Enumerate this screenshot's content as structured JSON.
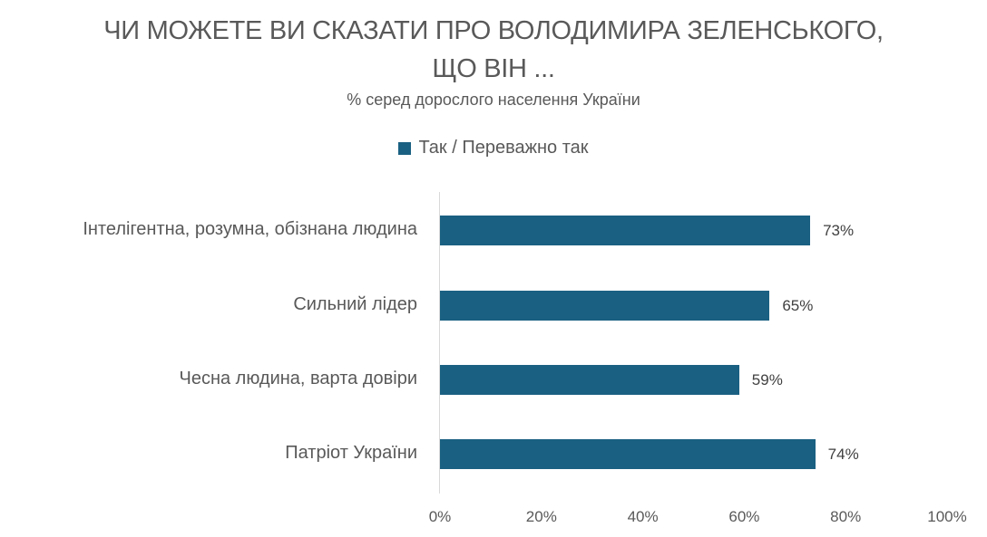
{
  "title": {
    "line1": "ЧИ МОЖЕТЕ ВИ СКАЗАТИ ПРО ВОЛОДИМИРА ЗЕЛЕНСЬКОГО,",
    "line2": "ЩО ВІН ...",
    "subtitle": "% серед дорослого населення України"
  },
  "legend": {
    "label": "Так / Переважно так",
    "color": "#1a6082"
  },
  "axis": {
    "ticks": [
      "0%",
      "20%",
      "40%",
      "60%",
      "80%",
      "100%"
    ]
  },
  "bars": [
    {
      "label": "Інтелігентна, розумна, обізнана людина",
      "value": 73,
      "value_label": "73%"
    },
    {
      "label": "Сильний лідер",
      "value": 65,
      "value_label": "65%"
    },
    {
      "label": "Чесна людина, варта довіри",
      "value": 59,
      "value_label": "59%"
    },
    {
      "label": "Патріот України",
      "value": 74,
      "value_label": "74%"
    }
  ],
  "chart_data": {
    "type": "bar",
    "orientation": "horizontal",
    "title": "ЧИ МОЖЕТЕ ВИ СКАЗАТИ ПРО ВОЛОДИМИРА ЗЕЛЕНСЬКОГО, ЩО ВІН ...",
    "subtitle": "% серед дорослого населення України",
    "categories": [
      "Інтелігентна, розумна, обізнана людина",
      "Сильний лідер",
      "Чесна людина, варта довіри",
      "Патріот України"
    ],
    "series": [
      {
        "name": "Так / Переважно так",
        "values": [
          73,
          65,
          59,
          74
        ],
        "color": "#1a6082"
      }
    ],
    "data_labels": [
      "73%",
      "65%",
      "59%",
      "74%"
    ],
    "xlabel": "",
    "ylabel": "",
    "xlim": [
      0,
      100
    ],
    "x_ticks": [
      "0%",
      "20%",
      "40%",
      "60%",
      "80%",
      "100%"
    ],
    "grid": false,
    "legend_position": "top"
  }
}
